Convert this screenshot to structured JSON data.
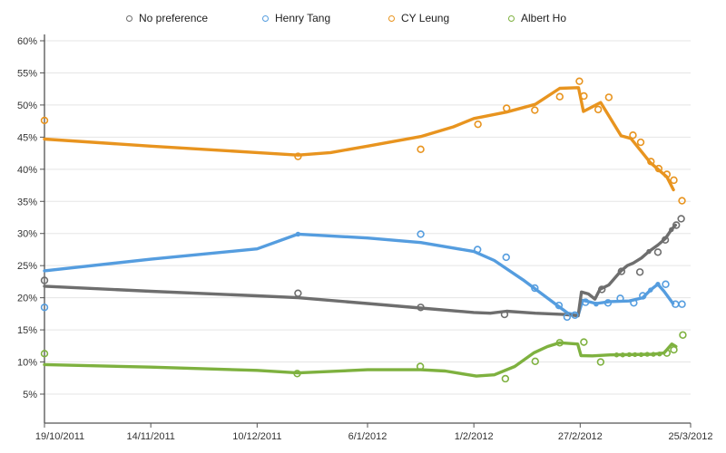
{
  "chart_data": {
    "type": "line",
    "title": "",
    "legend_position": "top",
    "grid": true,
    "x_axis": {
      "kind": "date",
      "tick_labels": [
        "19/10/2011",
        "14/11/2011",
        "10/12/2011",
        "6/1/2012",
        "1/2/2012",
        "27/2/2012",
        "25/3/2012"
      ],
      "tick_days": [
        0,
        26,
        52,
        79,
        105,
        131,
        158
      ],
      "range_days": [
        0,
        158
      ]
    },
    "y_axis": {
      "min": 5,
      "max": 60,
      "step": 5,
      "format": "percent",
      "tick_labels": [
        "5%",
        "10%",
        "15%",
        "20%",
        "25%",
        "30%",
        "35%",
        "40%",
        "45%",
        "50%",
        "55%",
        "60%"
      ]
    },
    "series": [
      {
        "name": "No preference",
        "color": "#6e6e6e",
        "line": [
          [
            0,
            21.8
          ],
          [
            26,
            21.0
          ],
          [
            52,
            20.3
          ],
          [
            62,
            20.0
          ],
          [
            79,
            19.1
          ],
          [
            92,
            18.4
          ],
          [
            105,
            17.7
          ],
          [
            109,
            17.6
          ],
          [
            113,
            17.9
          ],
          [
            120,
            17.6
          ],
          [
            127,
            17.4
          ],
          [
            130.5,
            17.2
          ],
          [
            131.3,
            20.9
          ],
          [
            133,
            20.6
          ],
          [
            134.6,
            19.8
          ],
          [
            135.8,
            21.3
          ],
          [
            138,
            22.0
          ],
          [
            141,
            24.2
          ],
          [
            142.5,
            25.0
          ],
          [
            144,
            25.4
          ],
          [
            146,
            26.2
          ],
          [
            147.8,
            27.2
          ],
          [
            150,
            28.2
          ],
          [
            151.8,
            29.2
          ],
          [
            153.3,
            30.6
          ],
          [
            154.3,
            31.3
          ]
        ],
        "points": [
          [
            0,
            22.7
          ],
          [
            62,
            20.7
          ],
          [
            92,
            18.5
          ],
          [
            112.5,
            17.4
          ],
          [
            136.3,
            21.3
          ],
          [
            141.1,
            24.1
          ],
          [
            145.6,
            24.0
          ],
          [
            150,
            27.1
          ],
          [
            151.8,
            29.0
          ],
          [
            154.5,
            31.3
          ],
          [
            155.7,
            32.3
          ]
        ],
        "dots": [
          [
            147.8,
            27.2
          ],
          [
            153.3,
            30.6
          ]
        ]
      },
      {
        "name": "Henry Tang",
        "color": "#559ddf",
        "line": [
          [
            0,
            24.2
          ],
          [
            26,
            26.0
          ],
          [
            52,
            27.6
          ],
          [
            62,
            29.9
          ],
          [
            79,
            29.3
          ],
          [
            92,
            28.6
          ],
          [
            105,
            27.2
          ],
          [
            110,
            25.8
          ],
          [
            117,
            22.8
          ],
          [
            125,
            19.0
          ],
          [
            128,
            17.6
          ],
          [
            130.5,
            17.3
          ],
          [
            131.6,
            19.6
          ],
          [
            133,
            19.4
          ],
          [
            134.9,
            19.1
          ],
          [
            138.2,
            19.4
          ],
          [
            143,
            19.5
          ],
          [
            146.3,
            20.0
          ],
          [
            148.2,
            21.2
          ],
          [
            150,
            22.1
          ],
          [
            151.5,
            21.0
          ],
          [
            153.7,
            19.1
          ]
        ],
        "points": [
          [
            0,
            18.5
          ],
          [
            92,
            29.9
          ],
          [
            105.9,
            27.5
          ],
          [
            112.9,
            26.3
          ],
          [
            119.9,
            21.5
          ],
          [
            125.8,
            18.8
          ],
          [
            127.8,
            17.0
          ],
          [
            129.7,
            17.3
          ],
          [
            132.3,
            19.3
          ],
          [
            137.8,
            19.2
          ],
          [
            140.8,
            19.9
          ],
          [
            144.1,
            19.2
          ],
          [
            146.3,
            20.3
          ],
          [
            151.9,
            22.1
          ],
          [
            154.3,
            19.0
          ],
          [
            155.9,
            19.0
          ]
        ],
        "dots": [
          [
            62,
            29.9
          ],
          [
            134.9,
            19.0
          ],
          [
            148.2,
            21.2
          ],
          [
            150,
            22.1
          ]
        ]
      },
      {
        "name": "CY Leung",
        "color": "#e8941f",
        "line": [
          [
            0,
            44.7
          ],
          [
            26,
            43.6
          ],
          [
            52,
            42.6
          ],
          [
            62,
            42.2
          ],
          [
            70,
            42.6
          ],
          [
            79,
            43.6
          ],
          [
            92,
            45.1
          ],
          [
            100,
            46.6
          ],
          [
            105,
            47.9
          ],
          [
            113,
            48.9
          ],
          [
            120,
            50.1
          ],
          [
            126,
            52.6
          ],
          [
            130.6,
            52.7
          ],
          [
            131.8,
            49.0
          ],
          [
            136,
            50.4
          ],
          [
            141,
            45.2
          ],
          [
            143.4,
            44.8
          ],
          [
            148.2,
            41.0
          ],
          [
            152.2,
            38.8
          ],
          [
            153.8,
            36.8
          ]
        ],
        "points": [
          [
            0,
            47.6
          ],
          [
            62,
            42.0
          ],
          [
            92,
            43.1
          ],
          [
            106,
            47.0
          ],
          [
            113,
            49.5
          ],
          [
            119.9,
            49.2
          ],
          [
            126,
            51.3
          ],
          [
            130.8,
            53.7
          ],
          [
            131.9,
            51.4
          ],
          [
            135.4,
            49.3
          ],
          [
            138,
            51.2
          ],
          [
            143.9,
            45.3
          ],
          [
            145.8,
            44.2
          ],
          [
            148.3,
            41.2
          ],
          [
            150.2,
            40.1
          ],
          [
            152.2,
            39.2
          ],
          [
            153.9,
            38.3
          ],
          [
            155.9,
            35.1
          ]
        ],
        "dots": []
      },
      {
        "name": "Albert Ho",
        "color": "#7eb13f",
        "line": [
          [
            0,
            9.6
          ],
          [
            26,
            9.2
          ],
          [
            52,
            8.7
          ],
          [
            62,
            8.3
          ],
          [
            79,
            8.8
          ],
          [
            92,
            8.8
          ],
          [
            98,
            8.6
          ],
          [
            105.6,
            7.8
          ],
          [
            110,
            8.0
          ],
          [
            115,
            9.3
          ],
          [
            119.6,
            11.4
          ],
          [
            123,
            12.4
          ],
          [
            126,
            13.0
          ],
          [
            130.4,
            12.8
          ],
          [
            131.2,
            11.0
          ],
          [
            134,
            10.95
          ],
          [
            138.3,
            11.1
          ],
          [
            148.9,
            11.2
          ],
          [
            151.5,
            11.4
          ],
          [
            153.4,
            12.8
          ],
          [
            154.4,
            12.4
          ]
        ],
        "points": [
          [
            0,
            11.3
          ],
          [
            61.8,
            8.2
          ],
          [
            91.9,
            9.3
          ],
          [
            112.7,
            7.4
          ],
          [
            120,
            10.1
          ],
          [
            126,
            13.0
          ],
          [
            131.9,
            13.1
          ],
          [
            136,
            10.0
          ],
          [
            152.2,
            11.4
          ],
          [
            153.9,
            11.9
          ],
          [
            156.1,
            14.2
          ]
        ],
        "dots": [
          [
            139.9,
            11.1
          ],
          [
            141.4,
            11.1
          ],
          [
            143,
            11.15
          ],
          [
            144.4,
            11.15
          ],
          [
            145.9,
            11.15
          ],
          [
            147.4,
            11.2
          ],
          [
            148.9,
            11.2
          ],
          [
            150.4,
            11.25
          ]
        ]
      }
    ]
  }
}
